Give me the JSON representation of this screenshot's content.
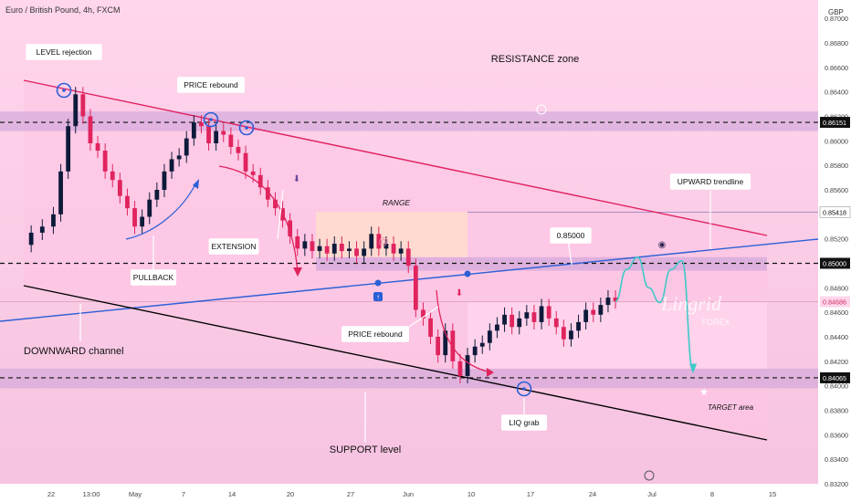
{
  "header": {
    "title": "Euro / British Pound, 4h, FXCM",
    "currency": "GBP"
  },
  "chart_data": {
    "type": "candlestick",
    "symbol": "EUR/GBP",
    "timeframe": "4h",
    "ylim": [
      0.832,
      0.8715
    ],
    "y_ticks": [
      "0.87000",
      "0.86800",
      "0.86600",
      "0.86400",
      "0.86200",
      "0.86000",
      "0.85800",
      "0.85600",
      "0.85400",
      "0.85200",
      "0.85000",
      "0.84800",
      "0.84600",
      "0.84400",
      "0.84200",
      "0.84000",
      "0.83800",
      "0.83600",
      "0.83400",
      "0.83200"
    ],
    "x_ticks": [
      "22",
      "13:00",
      "May",
      "7",
      "14",
      "20",
      "27",
      "Jun",
      "10",
      "17",
      "24",
      "Jul",
      "8",
      "15"
    ],
    "price_markers": [
      {
        "label": "0.86151",
        "value": 0.86151,
        "style": "dark"
      },
      {
        "label": "0.85418",
        "value": 0.85418,
        "style": "light"
      },
      {
        "label": "0.85000",
        "value": 0.85,
        "style": "dark"
      },
      {
        "label": "0.84686",
        "value": 0.84686,
        "style": "last"
      },
      {
        "label": "0.84065",
        "value": 0.84065,
        "style": "dark"
      }
    ],
    "series": [
      {
        "name": "close",
        "x_pct": [
          0,
          1.5,
          3,
          4.5,
          5.5,
          6.5,
          7.5,
          8.5,
          9.5,
          10.5,
          11.5,
          12.5,
          13.5,
          14.5,
          15.5,
          16.5,
          17.5,
          18.5,
          19.5,
          20.5,
          21.5,
          22.5,
          23.5,
          24.5,
          25.5,
          26.5,
          27.5,
          28.5,
          29.5,
          30.5,
          31.5,
          32.5,
          33.5,
          34.5,
          35.5,
          36.5,
          37.5,
          38.5,
          39.5,
          40.5,
          41.5,
          42.5,
          43.5,
          44.5,
          45.5,
          46.5,
          47.5,
          48.5,
          49.5,
          50.5,
          51.5,
          52.5,
          53.5,
          54.5,
          55.5,
          56.5,
          57.5,
          58.5,
          59.5,
          60.5,
          61.5,
          62.5,
          63.5,
          64.5,
          65.5,
          66.5,
          67.5,
          68.5,
          69.5,
          70.5,
          71.5,
          72.5,
          73.5,
          74.5,
          75.5,
          76.5,
          77.5,
          78.5,
          79.5,
          80.5
        ],
        "values": [
          0.8515,
          0.8525,
          0.853,
          0.854,
          0.8575,
          0.8612,
          0.8638,
          0.862,
          0.8598,
          0.8592,
          0.8575,
          0.8568,
          0.8555,
          0.8545,
          0.853,
          0.8538,
          0.8552,
          0.856,
          0.8575,
          0.8585,
          0.8588,
          0.8602,
          0.8615,
          0.8612,
          0.8598,
          0.8608,
          0.8605,
          0.8595,
          0.859,
          0.8575,
          0.8572,
          0.8562,
          0.8552,
          0.8545,
          0.8535,
          0.8522,
          0.8512,
          0.8518,
          0.851,
          0.8514,
          0.8508,
          0.8516,
          0.851,
          0.8512,
          0.8506,
          0.8512,
          0.8524,
          0.8512,
          0.8516,
          0.8508,
          0.8512,
          0.8498,
          0.8462,
          0.8455,
          0.844,
          0.8425,
          0.8445,
          0.842,
          0.8408,
          0.8425,
          0.8432,
          0.8435,
          0.8445,
          0.845,
          0.8458,
          0.8448,
          0.8455,
          0.846,
          0.8452,
          0.8465,
          0.8455,
          0.8448,
          0.8438,
          0.8445,
          0.8452,
          0.8462,
          0.8458,
          0.8466,
          0.8472,
          0.8469
        ]
      }
    ],
    "projection_x_pct": [
      80.5,
      82,
      83.5,
      85,
      86.5,
      88,
      89.5,
      91
    ],
    "projection_values": [
      0.8469,
      0.8495,
      0.8505,
      0.848,
      0.8468,
      0.8495,
      0.8502,
      0.8412
    ]
  },
  "annotations": {
    "level_rejection": "LEVEL rejection",
    "price_rebound_top": "PRICE rebound",
    "resistance_zone": "RESISTANCE zone",
    "range": "RANGE",
    "upward_trendline": "UPWARD trendline",
    "level_850": "0.85000",
    "extension": "EXTENSION",
    "pullback": "PULLBACK",
    "downward_channel": "DOWNWARD channel",
    "price_rebound_bottom": "PRICE rebound",
    "support_level": "SUPPORT level",
    "liq_grab": "LIQ grab",
    "target_area": "TARGET area",
    "watermark_main": "Lingrid",
    "watermark_sub": "FOREX"
  },
  "colors": {
    "background_top": "#ffd3ea",
    "background_bottom": "#f7c6e2",
    "zone": "#c9a0d8",
    "candle_up": "#0e1a3a",
    "candle_down": "#e0245e",
    "resistance_line": "#e02060",
    "upward_trend": "#2c5fd6",
    "channel_line": "#000000",
    "projection": "#40c8c8",
    "range_box": "#ffe0c8",
    "marker_circle": "#2c5fd6"
  }
}
